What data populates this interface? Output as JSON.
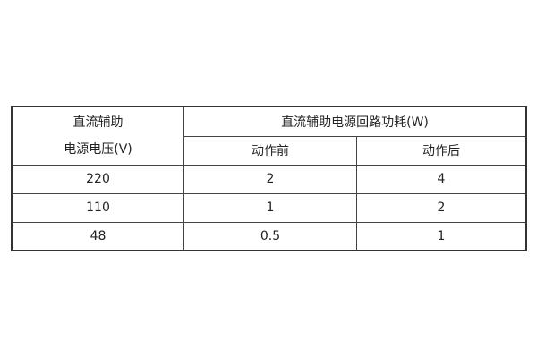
{
  "table": {
    "header": {
      "col1_line1": "直流辅助",
      "col1_line2": "电源电压(V)",
      "group": "直流辅助电源回路功耗(W)",
      "sub1": "动作前",
      "sub2": "动作后"
    },
    "rows": [
      {
        "voltage": "220",
        "before": "2",
        "after": "4"
      },
      {
        "voltage": "110",
        "before": "1",
        "after": "2"
      },
      {
        "voltage": "48",
        "before": "0.5",
        "after": "1"
      }
    ]
  }
}
